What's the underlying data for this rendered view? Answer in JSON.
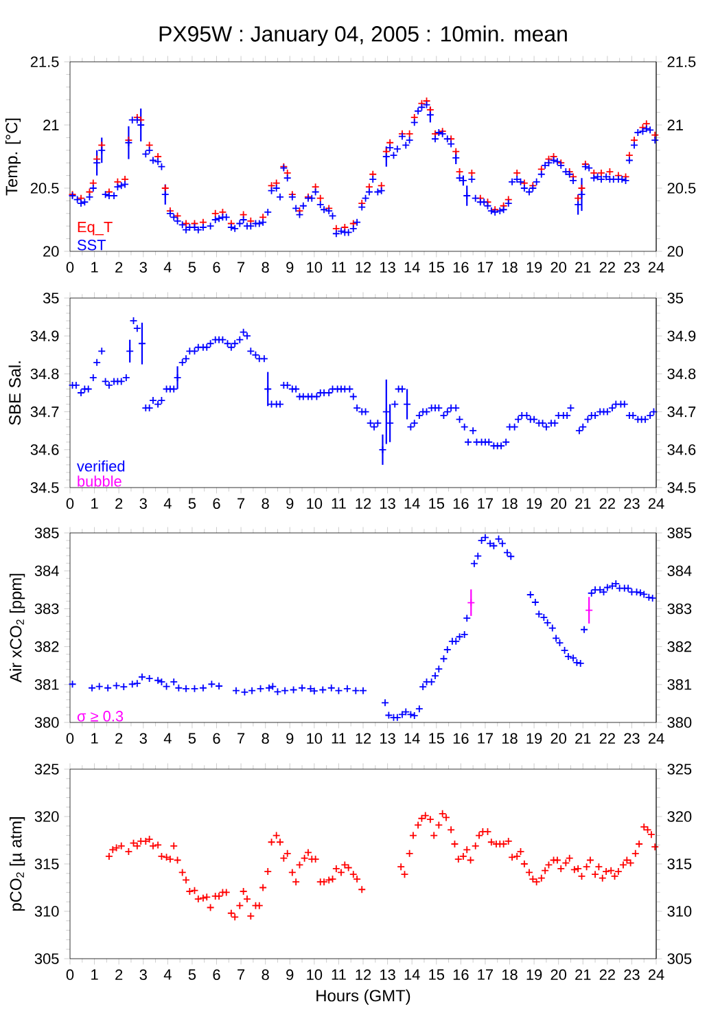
{
  "chart_data": [
    {
      "type": "scatter",
      "title": "PX95W : January 04, 2005 : 10min. mean",
      "ylabel": "Temp. [°C]",
      "marker": "cross",
      "legend": "bottom left",
      "xlim": [
        0,
        24
      ],
      "xticks": [
        0,
        1,
        2,
        3,
        4,
        5,
        6,
        7,
        8,
        9,
        10,
        11,
        12,
        13,
        14,
        15,
        16,
        17,
        18,
        19,
        20,
        21,
        22,
        23,
        24
      ],
      "ylim": [
        20,
        21.5
      ],
      "yticks": [
        20,
        20.5,
        21,
        21.5
      ],
      "y2lim": [
        20,
        21.5
      ],
      "y2ticks": [
        20,
        20.5,
        21,
        21.5
      ],
      "series": [
        {
          "name": "Eq_T",
          "color": "#ff0000",
          "x": [
            0.1,
            0.45,
            0.8,
            0.95,
            1.1,
            1.3,
            1.6,
            1.95,
            2.25,
            2.4,
            2.75,
            2.9,
            3.25,
            3.6,
            3.9,
            4.1,
            4.4,
            4.75,
            5.1,
            5.45,
            5.95,
            6.25,
            6.6,
            7.1,
            7.4,
            7.9,
            8.25,
            8.45,
            8.75,
            8.9,
            9.1,
            9.4,
            9.75,
            10.05,
            10.25,
            10.6,
            10.9,
            11.25,
            11.6,
            11.95,
            12.25,
            12.4,
            12.75,
            12.95,
            13.1,
            13.6,
            13.9,
            14.1,
            14.4,
            14.6,
            14.75,
            14.95,
            15.25,
            15.6,
            15.8,
            15.95,
            16.45,
            16.8,
            17.1,
            17.4,
            17.75,
            17.95,
            18.3,
            18.6,
            18.95,
            19.3,
            19.6,
            19.8,
            20.1,
            20.45,
            20.6,
            20.8,
            20.95,
            21.1,
            21.45,
            21.75,
            22.1,
            22.45,
            22.75,
            22.9,
            23.1,
            23.45,
            23.6,
            23.95
          ],
          "values": [
            20.45,
            20.42,
            20.47,
            20.54,
            20.73,
            20.84,
            20.47,
            20.55,
            20.57,
            20.88,
            21.06,
            21.04,
            20.84,
            20.75,
            20.5,
            20.32,
            20.28,
            20.22,
            20.22,
            20.23,
            20.3,
            20.31,
            20.22,
            20.29,
            20.24,
            20.27,
            20.52,
            20.54,
            20.67,
            20.62,
            20.45,
            20.32,
            20.43,
            20.51,
            20.42,
            20.34,
            20.18,
            20.19,
            20.22,
            20.38,
            20.51,
            20.61,
            20.52,
            20.79,
            20.86,
            20.93,
            20.93,
            21.06,
            21.17,
            21.19,
            21.12,
            20.93,
            20.95,
            20.89,
            20.79,
            20.63,
            20.62,
            20.42,
            20.39,
            20.33,
            20.36,
            20.41,
            20.62,
            20.54,
            20.52,
            20.65,
            20.73,
            20.75,
            20.7,
            20.63,
            20.59,
            20.42,
            20.5,
            20.69,
            20.62,
            20.62,
            20.63,
            20.6,
            20.59,
            20.76,
            20.88,
            20.98,
            21.01,
            20.92
          ]
        },
        {
          "name": "SST",
          "color": "#0000ff",
          "x": [
            0.1,
            0.3,
            0.45,
            0.6,
            0.8,
            0.95,
            1.1,
            1.3,
            1.45,
            1.6,
            1.8,
            1.95,
            2.1,
            2.25,
            2.4,
            2.55,
            2.75,
            2.9,
            3.1,
            3.25,
            3.4,
            3.6,
            3.75,
            3.9,
            4.1,
            4.25,
            4.4,
            4.6,
            4.75,
            4.9,
            5.1,
            5.25,
            5.45,
            5.75,
            5.95,
            6.1,
            6.25,
            6.4,
            6.6,
            6.75,
            6.95,
            7.1,
            7.25,
            7.4,
            7.6,
            7.75,
            7.9,
            8.1,
            8.25,
            8.45,
            8.6,
            8.75,
            8.9,
            9.1,
            9.25,
            9.4,
            9.55,
            9.75,
            9.9,
            10.05,
            10.25,
            10.4,
            10.6,
            10.75,
            10.9,
            11.1,
            11.25,
            11.4,
            11.6,
            11.75,
            11.95,
            12.1,
            12.25,
            12.4,
            12.6,
            12.75,
            12.95,
            13.1,
            13.25,
            13.4,
            13.6,
            13.75,
            13.9,
            14.1,
            14.25,
            14.4,
            14.6,
            14.75,
            14.95,
            15.1,
            15.25,
            15.45,
            15.6,
            15.8,
            15.95,
            16.1,
            16.25,
            16.45,
            16.6,
            16.8,
            16.95,
            17.1,
            17.25,
            17.4,
            17.6,
            17.75,
            17.95,
            18.1,
            18.3,
            18.45,
            18.6,
            18.8,
            18.95,
            19.1,
            19.3,
            19.45,
            19.6,
            19.8,
            19.95,
            20.1,
            20.3,
            20.45,
            20.6,
            20.8,
            20.95,
            21.1,
            21.25,
            21.45,
            21.6,
            21.75,
            21.95,
            22.1,
            22.25,
            22.45,
            22.6,
            22.75,
            22.9,
            23.1,
            23.25,
            23.45,
            23.6,
            23.75,
            23.95
          ],
          "values": [
            20.44,
            20.41,
            20.38,
            20.39,
            20.43,
            20.5,
            20.7,
            20.8,
            20.45,
            20.44,
            20.44,
            20.51,
            20.52,
            20.53,
            20.86,
            21.04,
            21.04,
            21.0,
            20.77,
            20.8,
            20.72,
            20.71,
            20.67,
            20.45,
            20.3,
            20.27,
            20.24,
            20.21,
            20.17,
            20.19,
            20.19,
            20.17,
            20.19,
            20.2,
            20.25,
            20.26,
            20.27,
            20.27,
            20.19,
            20.18,
            20.22,
            20.25,
            20.2,
            20.2,
            20.22,
            20.22,
            20.23,
            20.31,
            20.48,
            20.5,
            20.43,
            20.66,
            20.58,
            20.43,
            20.34,
            20.29,
            20.36,
            20.42,
            20.42,
            20.47,
            20.37,
            20.33,
            20.32,
            20.28,
            20.14,
            20.16,
            20.15,
            20.15,
            20.18,
            20.23,
            20.35,
            20.42,
            20.47,
            20.57,
            20.47,
            20.48,
            20.75,
            20.82,
            20.76,
            20.81,
            20.91,
            20.84,
            20.88,
            21.02,
            21.11,
            21.14,
            21.16,
            21.08,
            20.89,
            20.94,
            20.93,
            20.89,
            20.85,
            20.74,
            20.58,
            20.56,
            20.44,
            20.57,
            20.42,
            20.39,
            20.39,
            20.36,
            20.32,
            20.31,
            20.32,
            20.33,
            20.38,
            20.55,
            20.57,
            20.55,
            20.5,
            20.47,
            20.5,
            20.55,
            20.61,
            20.68,
            20.7,
            20.72,
            20.71,
            20.68,
            20.63,
            20.61,
            20.56,
            20.37,
            20.45,
            20.67,
            20.66,
            20.58,
            20.59,
            20.57,
            20.59,
            20.57,
            20.57,
            20.57,
            20.57,
            20.56,
            20.72,
            20.84,
            20.94,
            20.95,
            20.97,
            20.96,
            20.88
          ],
          "errors": [
            null,
            null,
            null,
            null,
            null,
            null,
            0.1,
            0.1,
            null,
            null,
            null,
            null,
            null,
            null,
            0.13,
            null,
            null,
            0.13,
            null,
            null,
            null,
            null,
            null,
            0.08,
            null,
            null,
            null,
            null,
            null,
            null,
            null,
            null,
            null,
            null,
            null,
            null,
            null,
            null,
            null,
            null,
            null,
            null,
            null,
            null,
            null,
            null,
            null,
            null,
            null,
            null,
            null,
            null,
            null,
            null,
            null,
            null,
            null,
            null,
            null,
            null,
            null,
            null,
            null,
            null,
            null,
            null,
            null,
            null,
            null,
            null,
            null,
            null,
            null,
            null,
            null,
            null,
            0.08,
            null,
            null,
            null,
            null,
            null,
            null,
            null,
            null,
            null,
            null,
            0.06,
            null,
            null,
            null,
            null,
            null,
            0.05,
            null,
            0.04,
            0.08,
            null,
            null,
            null,
            null,
            null,
            null,
            null,
            null,
            null,
            null,
            null,
            null,
            null,
            null,
            null,
            null,
            null,
            null,
            null,
            null,
            null,
            null,
            null,
            null,
            null,
            null,
            0.08,
            0.13,
            null,
            null,
            null,
            null,
            null,
            null,
            null,
            null,
            null,
            null,
            null,
            null,
            null,
            null,
            null,
            null,
            null,
            null
          ]
        }
      ]
    },
    {
      "type": "scatter",
      "ylabel": "SBE Sal.",
      "marker": "cross",
      "legend": "bottom left",
      "xlim": [
        0,
        24
      ],
      "xticks": [
        0,
        1,
        2,
        3,
        4,
        5,
        6,
        7,
        8,
        9,
        10,
        11,
        12,
        13,
        14,
        15,
        16,
        17,
        18,
        19,
        20,
        21,
        22,
        23,
        24
      ],
      "ylim": [
        34.5,
        35
      ],
      "yticks": [
        34.5,
        34.6,
        34.7,
        34.8,
        34.9,
        35
      ],
      "y2lim": [
        34.5,
        35
      ],
      "y2ticks": [
        34.5,
        34.6,
        34.7,
        34.8,
        34.9,
        35
      ],
      "series": [
        {
          "name": "verified",
          "color": "#0000ff",
          "x": [
            0.1,
            0.25,
            0.45,
            0.6,
            0.75,
            0.95,
            1.1,
            1.3,
            1.45,
            1.6,
            1.8,
            1.95,
            2.1,
            2.3,
            2.45,
            2.6,
            2.75,
            2.95,
            3.1,
            3.25,
            3.4,
            3.6,
            3.75,
            3.95,
            4.1,
            4.25,
            4.4,
            4.6,
            4.75,
            4.9,
            5.1,
            5.25,
            5.45,
            5.6,
            5.75,
            5.95,
            6.1,
            6.25,
            6.45,
            6.6,
            6.75,
            6.95,
            7.1,
            7.25,
            7.4,
            7.6,
            7.75,
            7.95,
            8.1,
            8.25,
            8.45,
            8.6,
            8.75,
            8.9,
            9.1,
            9.25,
            9.4,
            9.55,
            9.75,
            9.9,
            10.1,
            10.25,
            10.4,
            10.6,
            10.75,
            10.95,
            11.1,
            11.25,
            11.45,
            11.6,
            11.75,
            11.95,
            12.1,
            12.3,
            12.45,
            12.6,
            12.8,
            12.95,
            13.1,
            13.3,
            13.45,
            13.6,
            13.8,
            13.95,
            14.1,
            14.3,
            14.45,
            14.6,
            14.8,
            14.95,
            15.1,
            15.3,
            15.45,
            15.6,
            15.8,
            15.95,
            16.15,
            16.3,
            16.5,
            16.65,
            16.85,
            17.0,
            17.15,
            17.35,
            17.5,
            17.65,
            17.85,
            18.0,
            18.2,
            18.35,
            18.5,
            18.7,
            18.85,
            19.0,
            19.2,
            19.35,
            19.5,
            19.7,
            19.85,
            20.0,
            20.2,
            20.35,
            20.5,
            20.85,
            21.0,
            21.2,
            21.35,
            21.5,
            21.7,
            21.85,
            22.0,
            22.2,
            22.35,
            22.55,
            22.7,
            22.9,
            23.05,
            23.25,
            23.4,
            23.55,
            23.75,
            23.9
          ],
          "values": [
            34.77,
            34.77,
            34.75,
            34.76,
            34.76,
            34.79,
            34.83,
            34.86,
            34.78,
            34.77,
            34.78,
            34.78,
            34.78,
            34.79,
            34.86,
            34.94,
            34.92,
            34.88,
            34.71,
            34.71,
            34.73,
            34.72,
            34.73,
            34.76,
            34.76,
            34.76,
            34.79,
            34.83,
            34.84,
            34.86,
            34.86,
            34.87,
            34.87,
            34.87,
            34.88,
            34.89,
            34.89,
            34.89,
            34.88,
            34.87,
            34.88,
            34.89,
            34.91,
            34.9,
            34.86,
            34.85,
            34.84,
            34.84,
            34.76,
            34.72,
            34.72,
            34.72,
            34.77,
            34.77,
            34.76,
            34.76,
            34.74,
            34.74,
            34.74,
            34.74,
            34.74,
            34.75,
            34.75,
            34.75,
            34.76,
            34.76,
            34.76,
            34.76,
            34.76,
            34.74,
            34.71,
            34.7,
            34.7,
            34.67,
            34.66,
            34.67,
            34.6,
            34.7,
            34.67,
            34.72,
            34.76,
            34.76,
            34.72,
            34.66,
            34.67,
            34.69,
            34.7,
            34.7,
            34.71,
            34.71,
            34.71,
            34.69,
            34.7,
            34.71,
            34.71,
            34.68,
            34.66,
            34.62,
            34.65,
            34.62,
            34.62,
            34.62,
            34.62,
            34.61,
            34.61,
            34.61,
            34.62,
            34.66,
            34.66,
            34.68,
            34.69,
            34.69,
            34.68,
            34.68,
            34.67,
            34.67,
            34.66,
            34.67,
            34.67,
            34.69,
            34.69,
            34.69,
            34.71,
            34.65,
            34.66,
            34.68,
            34.69,
            34.69,
            34.7,
            34.7,
            34.7,
            34.71,
            34.72,
            34.72,
            34.72,
            34.69,
            34.69,
            34.68,
            34.68,
            34.68,
            34.69,
            34.7
          ],
          "errors": [
            null,
            null,
            null,
            null,
            null,
            null,
            null,
            null,
            null,
            null,
            null,
            null,
            null,
            null,
            0.03,
            null,
            null,
            0.055,
            null,
            null,
            null,
            null,
            null,
            null,
            null,
            null,
            0.03,
            null,
            null,
            null,
            null,
            null,
            null,
            null,
            null,
            null,
            null,
            null,
            null,
            null,
            null,
            null,
            null,
            null,
            null,
            null,
            null,
            null,
            0.045,
            null,
            null,
            null,
            null,
            null,
            null,
            null,
            null,
            null,
            null,
            null,
            null,
            null,
            null,
            null,
            null,
            null,
            null,
            null,
            null,
            null,
            null,
            null,
            null,
            null,
            null,
            null,
            0.04,
            0.085,
            0.05,
            null,
            null,
            null,
            0.04,
            null,
            null,
            null,
            null,
            null,
            null,
            null,
            null,
            null,
            null,
            null,
            null,
            null,
            null,
            null,
            null,
            null,
            null,
            null,
            null,
            null,
            null,
            null,
            null,
            null,
            null,
            null,
            null,
            null,
            null,
            null,
            null,
            null,
            null,
            null,
            null,
            null,
            null,
            null,
            null,
            null,
            null,
            null,
            null,
            null,
            null,
            null,
            null,
            null,
            null,
            null,
            null,
            null,
            null,
            null,
            null,
            null,
            null,
            null
          ]
        },
        {
          "name": "bubble",
          "color": "#ff00ff"
        }
      ]
    },
    {
      "type": "scatter",
      "ylabel": "Air xCO$_{2}$ [ppm]",
      "marker": "cross",
      "legend": "bottom left",
      "xlim": [
        0,
        24
      ],
      "xticks": [
        0,
        1,
        2,
        3,
        4,
        5,
        6,
        7,
        8,
        9,
        10,
        11,
        12,
        13,
        14,
        15,
        16,
        17,
        18,
        19,
        20,
        21,
        22,
        23,
        24
      ],
      "ylim": [
        380,
        385
      ],
      "yticks": [
        380,
        381,
        382,
        383,
        384,
        385
      ],
      "y2lim": [
        380,
        385
      ],
      "y2ticks": [
        380,
        381,
        382,
        383,
        384,
        385
      ],
      "series": [
        {
          "color": "#0000ff",
          "x": [
            0.1,
            0.9,
            1.2,
            1.55,
            1.9,
            2.2,
            2.55,
            2.75,
            2.95,
            3.25,
            3.6,
            3.75,
            3.95,
            4.25,
            4.45,
            4.75,
            5.1,
            5.45,
            5.8,
            6.1,
            6.8,
            7.15,
            7.45,
            7.8,
            8.15,
            8.3,
            8.5,
            8.8,
            9.15,
            9.5,
            9.85,
            10.0,
            10.35,
            10.7,
            11.0,
            11.35,
            11.7,
            12.0,
            12.9,
            13.05,
            13.25,
            13.4,
            13.6,
            13.75,
            13.95,
            14.1,
            14.3,
            14.45,
            14.6,
            14.8,
            14.95,
            15.1,
            15.3,
            15.45,
            15.65,
            15.8,
            15.95,
            16.15,
            16.25,
            16.55,
            16.7,
            16.85,
            17.0,
            17.2,
            17.35,
            17.55,
            17.7,
            17.9,
            18.05,
            18.85,
            19.05,
            19.2,
            19.4,
            19.55,
            19.75,
            19.9,
            20.05,
            20.25,
            20.4,
            20.6,
            20.75,
            20.9,
            21.05,
            21.35,
            21.5,
            21.7,
            21.85,
            22.0,
            22.2,
            22.35,
            22.5,
            22.7,
            22.85,
            23.0,
            23.2,
            23.35,
            23.5,
            23.7,
            23.85
          ],
          "values": [
            381.01,
            380.91,
            380.95,
            380.91,
            380.97,
            380.94,
            381.01,
            381.03,
            381.2,
            381.16,
            381.11,
            381.07,
            380.95,
            381.07,
            380.91,
            380.89,
            380.89,
            380.91,
            381.01,
            380.96,
            380.84,
            380.8,
            380.84,
            380.89,
            380.91,
            380.95,
            380.81,
            380.84,
            380.86,
            380.91,
            380.89,
            380.83,
            380.86,
            380.91,
            380.84,
            380.89,
            380.84,
            380.84,
            380.52,
            380.19,
            380.13,
            380.13,
            380.21,
            380.28,
            380.21,
            380.18,
            380.36,
            380.94,
            381.07,
            381.07,
            381.23,
            381.41,
            381.68,
            381.92,
            382.14,
            382.14,
            382.26,
            382.32,
            382.75,
            384.19,
            384.39,
            384.8,
            384.88,
            384.72,
            384.66,
            384.84,
            384.72,
            384.48,
            384.38,
            383.37,
            383.17,
            382.86,
            382.77,
            382.63,
            382.49,
            382.22,
            382.1,
            381.9,
            381.74,
            381.7,
            381.58,
            381.56,
            382.45,
            383.41,
            383.5,
            383.5,
            383.44,
            383.56,
            383.6,
            383.66,
            383.54,
            383.54,
            383.54,
            383.44,
            383.44,
            383.42,
            383.38,
            383.3,
            383.28
          ]
        },
        {
          "name": "σ ≥ 0.3",
          "color": "#ff00ff",
          "x": [
            16.42,
            21.25
          ],
          "values": [
            383.16,
            382.96
          ],
          "errors": [
            0.35,
            0.35
          ]
        }
      ]
    },
    {
      "type": "scatter",
      "ylabel": "pCO$_{2}$ [µ atm]",
      "xlabel": "Hours (GMT)",
      "marker": "cross",
      "xlim": [
        0,
        24
      ],
      "xticks": [
        0,
        1,
        2,
        3,
        4,
        5,
        6,
        7,
        8,
        9,
        10,
        11,
        12,
        13,
        14,
        15,
        16,
        17,
        18,
        19,
        20,
        21,
        22,
        23,
        24
      ],
      "ylim": [
        305,
        325
      ],
      "yticks": [
        305,
        310,
        315,
        320,
        325
      ],
      "y2lim": [
        305,
        325
      ],
      "y2ticks": [
        305,
        310,
        315,
        320,
        325
      ],
      "series": [
        {
          "color": "#ff0000",
          "x": [
            1.6,
            1.75,
            1.9,
            2.1,
            2.4,
            2.6,
            2.75,
            2.9,
            3.1,
            3.25,
            3.4,
            3.6,
            3.75,
            3.95,
            4.1,
            4.25,
            4.4,
            4.6,
            4.75,
            4.9,
            5.1,
            5.25,
            5.45,
            5.6,
            5.75,
            5.95,
            6.1,
            6.25,
            6.4,
            6.6,
            6.75,
            6.95,
            7.1,
            7.25,
            7.4,
            7.6,
            7.75,
            7.9,
            8.1,
            8.25,
            8.45,
            8.6,
            8.75,
            8.9,
            9.1,
            9.25,
            9.4,
            9.6,
            9.75,
            9.9,
            10.05,
            10.25,
            10.4,
            10.6,
            10.75,
            10.9,
            11.1,
            11.25,
            11.4,
            11.6,
            11.75,
            11.95,
            13.55,
            13.7,
            13.9,
            14.05,
            14.25,
            14.4,
            14.55,
            14.75,
            14.9,
            15.1,
            15.25,
            15.4,
            15.6,
            15.75,
            15.9,
            16.1,
            16.25,
            16.4,
            16.6,
            16.75,
            16.9,
            17.1,
            17.25,
            17.45,
            17.6,
            17.75,
            17.95,
            18.1,
            18.3,
            18.45,
            18.6,
            18.8,
            18.95,
            19.1,
            19.3,
            19.45,
            19.6,
            19.8,
            19.95,
            20.1,
            20.3,
            20.45,
            20.65,
            20.8,
            20.95,
            21.15,
            21.3,
            21.5,
            21.65,
            21.8,
            21.95,
            22.15,
            22.3,
            22.45,
            22.65,
            22.8,
            22.95,
            23.15,
            23.3,
            23.5,
            23.65,
            23.8,
            23.95
          ],
          "values": [
            315.8,
            316.5,
            316.7,
            316.9,
            316.3,
            317.2,
            316.9,
            317.4,
            317.4,
            317.6,
            316.9,
            317.0,
            315.8,
            315.7,
            315.5,
            316.9,
            315.4,
            314.1,
            313.3,
            312.1,
            312.2,
            311.3,
            311.4,
            311.5,
            310.4,
            311.6,
            311.6,
            312.0,
            312.0,
            309.8,
            309.4,
            310.6,
            312.1,
            311.3,
            309.5,
            310.6,
            310.6,
            312.5,
            314.2,
            317.3,
            318.0,
            317.3,
            315.6,
            316.1,
            314.1,
            313.1,
            314.9,
            315.6,
            316.2,
            315.5,
            315.5,
            313.1,
            313.1,
            313.3,
            313.4,
            314.5,
            314.1,
            314.9,
            314.6,
            313.9,
            313.4,
            312.3,
            314.7,
            313.9,
            316.1,
            318.0,
            319.1,
            319.8,
            320.1,
            319.7,
            318.0,
            319.1,
            320.3,
            319.9,
            318.6,
            317.1,
            315.5,
            315.8,
            316.5,
            315.4,
            316.9,
            318.0,
            318.4,
            318.4,
            317.3,
            317.1,
            317.1,
            317.1,
            317.4,
            315.7,
            315.8,
            316.3,
            315.0,
            314.1,
            313.4,
            313.1,
            313.5,
            314.3,
            314.9,
            315.4,
            315.4,
            314.5,
            315.1,
            315.6,
            314.4,
            314.5,
            313.7,
            314.7,
            315.4,
            313.9,
            314.7,
            313.5,
            314.2,
            314.3,
            313.7,
            314.2,
            314.9,
            315.4,
            315.1,
            316.1,
            317.1,
            318.9,
            318.6,
            318.1,
            316.8
          ]
        }
      ]
    }
  ]
}
